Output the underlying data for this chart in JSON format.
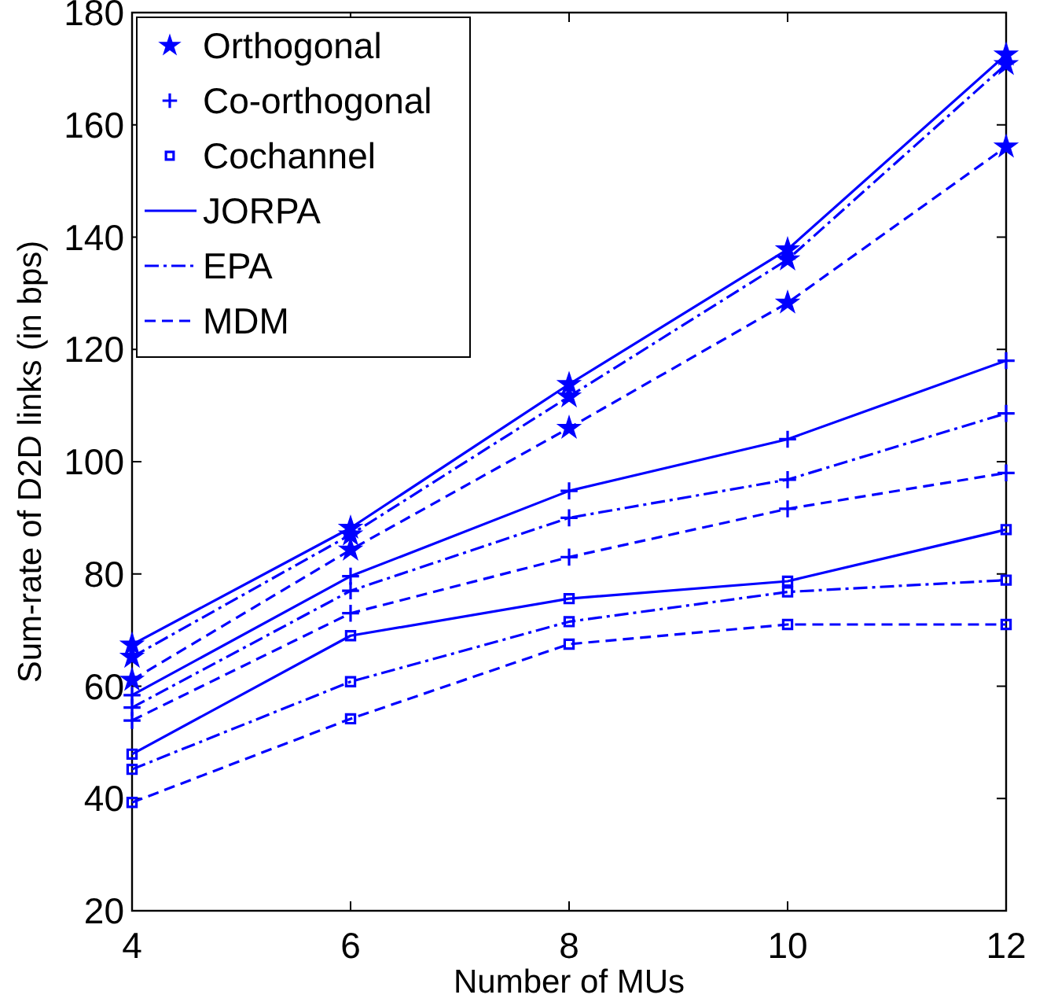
{
  "chart_data": {
    "type": "line",
    "xlabel": "Number of MUs",
    "ylabel": "Sum-rate of D2D links (in bps)",
    "xlim": [
      4,
      12
    ],
    "xticks": [
      4,
      6,
      8,
      10,
      12
    ],
    "ylim": [
      20,
      180
    ],
    "yticks": [
      20,
      40,
      60,
      80,
      100,
      120,
      140,
      160,
      180
    ],
    "legend": "top left",
    "series": [
      {
        "name": "Orthogonal",
        "type": "scatter",
        "marker": "star",
        "color": "#0000ff",
        "x": [
          4,
          4,
          4,
          6,
          6,
          6,
          8,
          8,
          8,
          10,
          10,
          10,
          12,
          12,
          12
        ],
        "values": [
          67.4,
          65.2,
          61.1,
          88.2,
          87.0,
          84.3,
          113.8,
          111.6,
          106.0,
          137.8,
          136.0,
          128.3,
          172.5,
          170.8,
          156.1
        ]
      },
      {
        "name": "Co-orthogonal",
        "type": "scatter",
        "marker": "cross",
        "color": "#0000ff",
        "x": [
          4,
          4,
          4,
          6,
          6,
          6,
          8,
          8,
          8,
          10,
          10,
          10,
          12,
          12,
          12
        ],
        "values": [
          58.4,
          56.2,
          53.9,
          79.6,
          77.0,
          73.0,
          94.8,
          90.0,
          83.0,
          104.0,
          96.8,
          91.6,
          118.0,
          108.6,
          98.0
        ]
      },
      {
        "name": "Cochannel",
        "type": "scatter",
        "marker": "square",
        "color": "#0000ff",
        "x": [
          4,
          4,
          4,
          6,
          6,
          6,
          8,
          8,
          8,
          10,
          10,
          10,
          12,
          12,
          12
        ],
        "values": [
          47.9,
          45.2,
          39.3,
          69.0,
          60.8,
          54.2,
          75.6,
          71.5,
          67.5,
          78.7,
          76.8,
          71.0,
          87.9,
          78.9,
          71.0
        ]
      },
      {
        "name": "JORPA",
        "line_style": "solid",
        "color": "#0000ff",
        "x": [
          4,
          6,
          8,
          10,
          12
        ],
        "values": [
          67.4,
          88.2,
          113.8,
          137.8,
          172.5
        ]
      },
      {
        "name": "EPA",
        "line_style": "dashdot",
        "color": "#0000ff",
        "x": [
          4,
          6,
          8,
          10,
          12
        ],
        "values": [
          65.2,
          87.0,
          111.6,
          136.0,
          170.8
        ]
      },
      {
        "name": "MDM",
        "line_style": "dashed",
        "color": "#0000ff",
        "x": [
          4,
          6,
          8,
          10,
          12
        ],
        "values": [
          61.1,
          84.3,
          106.0,
          128.3,
          156.1
        ]
      },
      {
        "line_style": "solid",
        "color": "#0000ff",
        "x": [
          4,
          6,
          8,
          10,
          12
        ],
        "values": [
          58.4,
          79.6,
          94.8,
          104.0,
          118.0
        ]
      },
      {
        "line_style": "dashdot",
        "color": "#0000ff",
        "x": [
          4,
          6,
          8,
          10,
          12
        ],
        "values": [
          56.2,
          77.0,
          90.0,
          96.8,
          108.6
        ]
      },
      {
        "line_style": "dashed",
        "color": "#0000ff",
        "x": [
          4,
          6,
          8,
          10,
          12
        ],
        "values": [
          53.9,
          73.0,
          83.0,
          91.6,
          98.0
        ]
      },
      {
        "line_style": "solid",
        "color": "#0000ff",
        "x": [
          4,
          6,
          8,
          10,
          12
        ],
        "values": [
          47.9,
          69.0,
          75.6,
          78.7,
          87.9
        ]
      },
      {
        "line_style": "dashdot",
        "color": "#0000ff",
        "x": [
          4,
          6,
          8,
          10,
          12
        ],
        "values": [
          45.2,
          60.8,
          71.5,
          76.8,
          78.9
        ]
      },
      {
        "line_style": "dashed",
        "color": "#0000ff",
        "x": [
          4,
          6,
          8,
          10,
          12
        ],
        "values": [
          39.3,
          54.2,
          67.5,
          71.0,
          71.0
        ]
      }
    ]
  }
}
